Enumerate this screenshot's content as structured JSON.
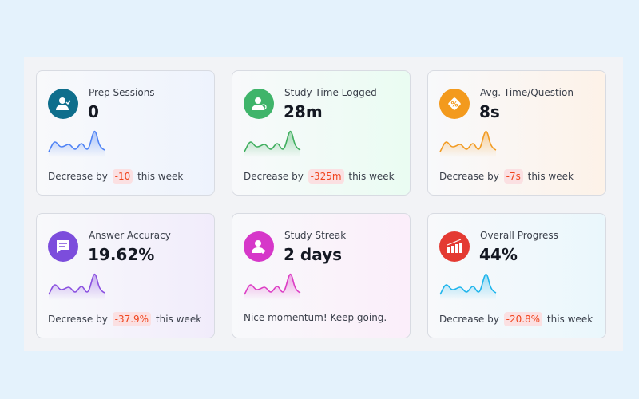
{
  "cards": [
    {
      "title": "Prep Sessions",
      "value": "0",
      "icon": "user-check-icon",
      "color": "#0e6e8c",
      "spark": "#4f83f5",
      "tint": "#eef3fd",
      "footer_prefix": "Decrease by",
      "delta": "-10",
      "footer_suffix": "this week"
    },
    {
      "title": "Study Time Logged",
      "value": "28m",
      "icon": "user-clock-icon",
      "color": "#3fb46a",
      "spark": "#3fae5e",
      "tint": "#eafcf2",
      "footer_prefix": "Decrease by",
      "delta": "-325m",
      "footer_suffix": "this week"
    },
    {
      "title": "Avg. Time/Question",
      "value": "8s",
      "icon": "percent-badge-icon",
      "color": "#f39a1d",
      "spark": "#f29b22",
      "tint": "#fdf2e8",
      "footer_prefix": "Decrease by",
      "delta": "-7s",
      "footer_suffix": "this week"
    },
    {
      "title": "Answer Accuracy",
      "value": "19.62%",
      "icon": "message-icon",
      "color": "#7c4ddc",
      "spark": "#8a50e0",
      "tint": "#f1ecfb",
      "footer_prefix": "Decrease by",
      "delta": "-37.9%",
      "footer_suffix": "this week"
    },
    {
      "title": "Study Streak",
      "value": "2 days",
      "icon": "user-heart-icon",
      "color": "#d637c9",
      "spark": "#dc3cc4",
      "tint": "#fbeefa",
      "footer_text": "Nice momentum! Keep going."
    },
    {
      "title": "Overall Progress",
      "value": "44%",
      "icon": "bar-chart-growth-icon",
      "color": "#e43a32",
      "spark": "#1fb5ec",
      "tint": "#eaf7fc",
      "footer_prefix": "Decrease by",
      "delta": "-20.8%",
      "footer_suffix": "this week"
    }
  ]
}
